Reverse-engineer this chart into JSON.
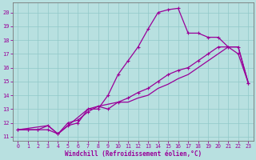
{
  "xlabel": "Windchill (Refroidissement éolien,°C)",
  "xlim": [
    -0.5,
    23.5
  ],
  "ylim": [
    10.7,
    20.7
  ],
  "yticks": [
    11,
    12,
    13,
    14,
    15,
    16,
    17,
    18,
    19,
    20
  ],
  "xticks": [
    0,
    1,
    2,
    3,
    4,
    5,
    6,
    7,
    8,
    9,
    10,
    11,
    12,
    13,
    14,
    15,
    16,
    17,
    18,
    19,
    20,
    21,
    22,
    23
  ],
  "bg_color": "#b8e0e0",
  "grid_color": "#90c8c8",
  "line_color": "#990099",
  "curve1_x": [
    0,
    1,
    2,
    3,
    4,
    5,
    6,
    7,
    8,
    9,
    10,
    11,
    12,
    13,
    14,
    15,
    16,
    17,
    18,
    19,
    20,
    21,
    22,
    23
  ],
  "curve1_y": [
    11.5,
    11.5,
    11.5,
    11.5,
    11.2,
    11.8,
    12.0,
    13.0,
    13.0,
    14.0,
    15.5,
    16.5,
    17.5,
    18.8,
    20.0,
    20.2,
    20.3,
    18.5,
    18.5,
    18.2,
    18.2,
    17.5,
    17.0,
    14.9
  ],
  "curve2_x": [
    0,
    1,
    2,
    3,
    4,
    5,
    6,
    7,
    8,
    9,
    10,
    11,
    12,
    13,
    14,
    15,
    16,
    17,
    18,
    19,
    20,
    21,
    22,
    23
  ],
  "curve2_y": [
    11.5,
    11.5,
    11.5,
    11.8,
    11.2,
    12.0,
    12.2,
    12.8,
    13.2,
    13.0,
    13.5,
    13.8,
    14.2,
    14.5,
    15.0,
    15.5,
    15.8,
    16.0,
    16.5,
    17.0,
    17.5,
    17.5,
    17.5,
    14.9
  ],
  "diag_x": [
    0,
    3,
    4,
    7,
    8,
    10,
    11,
    12,
    13,
    14,
    15,
    16,
    17,
    18,
    19,
    20,
    21,
    22,
    23
  ],
  "diag_y": [
    11.5,
    11.8,
    11.2,
    13.0,
    13.2,
    13.5,
    13.5,
    13.8,
    14.0,
    14.5,
    14.8,
    15.2,
    15.5,
    16.0,
    16.5,
    17.0,
    17.5,
    17.5,
    14.9
  ]
}
